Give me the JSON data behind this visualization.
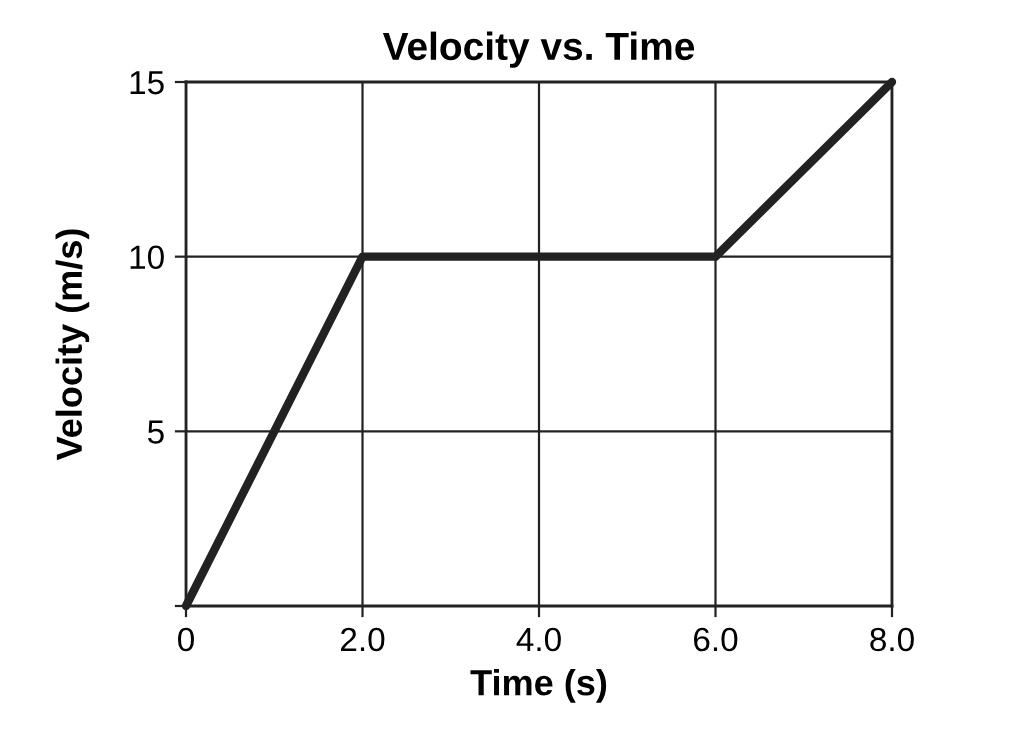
{
  "chart_data": {
    "type": "line",
    "title": "Velocity vs. Time",
    "xlabel": "Time (s)",
    "ylabel": "Velocity (m/s)",
    "x": [
      0,
      2,
      6,
      8
    ],
    "series": [
      {
        "color": "#222222",
        "values": [
          0,
          10,
          10,
          15
        ]
      }
    ],
    "xlim": [
      0,
      8
    ],
    "ylim": [
      0,
      15
    ],
    "xticks": [
      {
        "value": 0,
        "label": "0"
      },
      {
        "value": 2,
        "label": "2.0"
      },
      {
        "value": 4,
        "label": "4.0"
      },
      {
        "value": 6,
        "label": "6.0"
      },
      {
        "value": 8,
        "label": "8.0"
      }
    ],
    "yticks": [
      {
        "value": 0,
        "label": null
      },
      5,
      10,
      15
    ],
    "grid": true,
    "line_style": "solid",
    "marker": "none"
  }
}
